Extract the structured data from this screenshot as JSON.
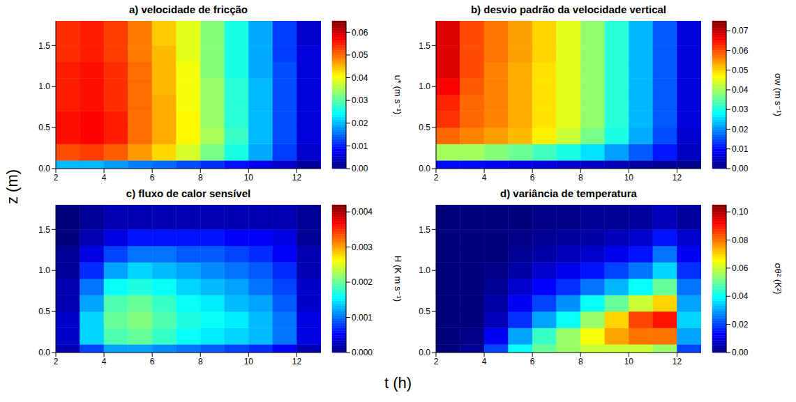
{
  "x_label": "t (h)",
  "y_label": "z (m)",
  "chart_data": [
    {
      "type": "heatmap",
      "title": "a) velocidade de fricção",
      "xlim": [
        2,
        13
      ],
      "xticks": [
        2,
        4,
        6,
        8,
        10,
        12
      ],
      "ylim": [
        0,
        1.8
      ],
      "yticks": [
        {
          "value": 0,
          "label": "0.0"
        },
        {
          "value": 0.5,
          "label": "0.5"
        },
        {
          "value": 1,
          "label": "1.0"
        },
        {
          "value": 1.5,
          "label": "1.5"
        }
      ],
      "x_edges": [
        2,
        3,
        4,
        5,
        6,
        7,
        8,
        9,
        10,
        11,
        12,
        13
      ],
      "y_edges": [
        0,
        0.1,
        0.3,
        0.5,
        0.7,
        0.9,
        1.1,
        1.3,
        1.5,
        1.8
      ],
      "cells": [
        [
          0.02,
          0.02,
          0.018,
          0.016,
          0.015,
          0.013,
          0.011,
          0.009,
          0.007,
          0.005,
          0.002
        ],
        [
          0.052,
          0.053,
          0.051,
          0.047,
          0.043,
          0.038,
          0.032,
          0.026,
          0.019,
          0.012,
          0.005
        ],
        [
          0.056,
          0.057,
          0.055,
          0.05,
          0.046,
          0.041,
          0.035,
          0.028,
          0.02,
          0.013,
          0.006
        ],
        [
          0.056,
          0.057,
          0.055,
          0.05,
          0.046,
          0.041,
          0.034,
          0.027,
          0.02,
          0.013,
          0.006
        ],
        [
          0.055,
          0.056,
          0.054,
          0.05,
          0.046,
          0.04,
          0.034,
          0.027,
          0.02,
          0.013,
          0.006
        ],
        [
          0.055,
          0.056,
          0.054,
          0.05,
          0.045,
          0.04,
          0.034,
          0.027,
          0.02,
          0.013,
          0.006
        ],
        [
          0.055,
          0.056,
          0.054,
          0.05,
          0.045,
          0.04,
          0.033,
          0.026,
          0.019,
          0.013,
          0.006
        ],
        [
          0.054,
          0.055,
          0.053,
          0.049,
          0.045,
          0.039,
          0.033,
          0.026,
          0.019,
          0.012,
          0.006
        ],
        [
          0.054,
          0.055,
          0.053,
          0.049,
          0.044,
          0.039,
          0.033,
          0.026,
          0.019,
          0.012,
          0.005
        ]
      ],
      "colorbar": {
        "label": "u* (m s⁻¹)",
        "range": [
          0,
          0.065
        ],
        "ticks": [
          {
            "value": 0,
            "label": "0.00"
          },
          {
            "value": 0.01,
            "label": "0.01"
          },
          {
            "value": 0.02,
            "label": "0.02"
          },
          {
            "value": 0.03,
            "label": "0.03"
          },
          {
            "value": 0.04,
            "label": "0.04"
          },
          {
            "value": 0.05,
            "label": "0.05"
          },
          {
            "value": 0.06,
            "label": "0.06"
          }
        ]
      }
    },
    {
      "type": "heatmap",
      "title": "b) desvio padrão da velocidade vertical",
      "xlim": [
        2,
        13
      ],
      "xticks": [
        2,
        4,
        6,
        8,
        10,
        12
      ],
      "ylim": [
        0,
        1.8
      ],
      "yticks": [
        {
          "value": 0,
          "label": "0.0"
        },
        {
          "value": 0.5,
          "label": "0.5"
        },
        {
          "value": 1,
          "label": "1.0"
        },
        {
          "value": 1.5,
          "label": "1.5"
        }
      ],
      "x_edges": [
        2,
        3,
        4,
        5,
        6,
        7,
        8,
        9,
        10,
        11,
        12,
        13
      ],
      "y_edges": [
        0,
        0.1,
        0.3,
        0.5,
        0.7,
        0.9,
        1.1,
        1.3,
        1.5,
        1.8
      ],
      "cells": [
        [
          0.01,
          0.01,
          0.009,
          0.008,
          0.007,
          0.006,
          0.005,
          0.004,
          0.003,
          0.002,
          0.001
        ],
        [
          0.04,
          0.04,
          0.038,
          0.036,
          0.033,
          0.03,
          0.026,
          0.021,
          0.016,
          0.011,
          0.005
        ],
        [
          0.058,
          0.056,
          0.054,
          0.052,
          0.048,
          0.043,
          0.037,
          0.03,
          0.022,
          0.015,
          0.006
        ],
        [
          0.062,
          0.058,
          0.056,
          0.053,
          0.049,
          0.045,
          0.039,
          0.031,
          0.023,
          0.016,
          0.007
        ],
        [
          0.063,
          0.058,
          0.056,
          0.053,
          0.049,
          0.045,
          0.039,
          0.031,
          0.023,
          0.016,
          0.007
        ],
        [
          0.066,
          0.059,
          0.056,
          0.053,
          0.049,
          0.045,
          0.039,
          0.031,
          0.023,
          0.016,
          0.007
        ],
        [
          0.068,
          0.06,
          0.056,
          0.053,
          0.049,
          0.045,
          0.039,
          0.031,
          0.023,
          0.016,
          0.007
        ],
        [
          0.068,
          0.06,
          0.057,
          0.054,
          0.05,
          0.045,
          0.039,
          0.031,
          0.023,
          0.016,
          0.007
        ],
        [
          0.068,
          0.06,
          0.057,
          0.054,
          0.05,
          0.045,
          0.039,
          0.031,
          0.023,
          0.016,
          0.007
        ]
      ],
      "colorbar": {
        "label": "σw (m s⁻¹)",
        "range": [
          0,
          0.075
        ],
        "ticks": [
          {
            "value": 0,
            "label": "0.00"
          },
          {
            "value": 0.01,
            "label": "0.01"
          },
          {
            "value": 0.02,
            "label": "0.02"
          },
          {
            "value": 0.03,
            "label": "0.03"
          },
          {
            "value": 0.04,
            "label": "0.04"
          },
          {
            "value": 0.05,
            "label": "0.05"
          },
          {
            "value": 0.06,
            "label": "0.06"
          },
          {
            "value": 0.07,
            "label": "0.07"
          }
        ]
      }
    },
    {
      "type": "heatmap",
      "title": "c) fluxo de calor sensível",
      "xlim": [
        2,
        13
      ],
      "xticks": [
        2,
        4,
        6,
        8,
        10,
        12
      ],
      "ylim": [
        0,
        1.8
      ],
      "yticks": [
        {
          "value": 0,
          "label": "0.0"
        },
        {
          "value": 0.5,
          "label": "0.5"
        },
        {
          "value": 1,
          "label": "1.0"
        },
        {
          "value": 1.5,
          "label": "1.5"
        }
      ],
      "x_edges": [
        2,
        3,
        4,
        5,
        6,
        7,
        8,
        9,
        10,
        11,
        12,
        13
      ],
      "y_edges": [
        0,
        0.1,
        0.3,
        0.5,
        0.7,
        0.9,
        1.1,
        1.3,
        1.5,
        1.8
      ],
      "cells": [
        [
          0.0002,
          0.0008,
          0.0012,
          0.0012,
          0.0011,
          0.001,
          0.0009,
          0.0008,
          0.0007,
          0.0005,
          0.0002
        ],
        [
          0.0003,
          0.0014,
          0.0019,
          0.002,
          0.0018,
          0.0016,
          0.0015,
          0.0014,
          0.0013,
          0.001,
          0.0004
        ],
        [
          0.0003,
          0.0014,
          0.002,
          0.0021,
          0.0019,
          0.0017,
          0.0016,
          0.0015,
          0.0013,
          0.001,
          0.0004
        ],
        [
          0.0002,
          0.0012,
          0.0019,
          0.002,
          0.0018,
          0.0016,
          0.0015,
          0.0013,
          0.0012,
          0.0009,
          0.0003
        ],
        [
          0.0002,
          0.001,
          0.0016,
          0.0017,
          0.0016,
          0.0014,
          0.0013,
          0.0012,
          0.001,
          0.0008,
          0.0003
        ],
        [
          0.0001,
          0.0007,
          0.0012,
          0.0014,
          0.0013,
          0.0012,
          0.0011,
          0.001,
          0.0009,
          0.0007,
          0.0002
        ],
        [
          0.0001,
          0.0004,
          0.0008,
          0.001,
          0.001,
          0.0009,
          0.0009,
          0.0008,
          0.0007,
          0.0005,
          0.0002
        ],
        [
          0,
          0.0002,
          0.0004,
          0.0006,
          0.0006,
          0.0006,
          0.0006,
          0.0005,
          0.0005,
          0.0004,
          0.0001
        ],
        [
          0,
          0.0001,
          0.0002,
          0.0002,
          0.0002,
          0.0002,
          0.0002,
          0.0002,
          0.0002,
          0.0002,
          0.0001
        ]
      ],
      "colorbar": {
        "label": "H (K m s⁻¹)",
        "range": [
          0,
          0.0042
        ],
        "ticks": [
          {
            "value": 0,
            "label": "0.000"
          },
          {
            "value": 0.001,
            "label": "0.001"
          },
          {
            "value": 0.002,
            "label": "0.002"
          },
          {
            "value": 0.003,
            "label": "0.003"
          },
          {
            "value": 0.004,
            "label": "0.004"
          }
        ]
      }
    },
    {
      "type": "heatmap",
      "title": "d) variância de temperatura",
      "xlim": [
        2,
        13
      ],
      "xticks": [
        2,
        4,
        6,
        8,
        10,
        12
      ],
      "ylim": [
        0,
        1.8
      ],
      "yticks": [
        {
          "value": 0,
          "label": "0.0"
        },
        {
          "value": 0.5,
          "label": "0.5"
        },
        {
          "value": 1,
          "label": "1.0"
        },
        {
          "value": 1.5,
          "label": "1.5"
        }
      ],
      "x_edges": [
        2,
        3,
        4,
        5,
        6,
        7,
        8,
        9,
        10,
        11,
        12,
        13
      ],
      "y_edges": [
        0,
        0.1,
        0.3,
        0.5,
        0.7,
        0.9,
        1.1,
        1.3,
        1.5,
        1.8
      ],
      "cells": [
        [
          0,
          0.002,
          0.02,
          0.04,
          0.05,
          0.055,
          0.06,
          0.06,
          0.06,
          0.055,
          0.02
        ],
        [
          0,
          0.001,
          0.012,
          0.03,
          0.045,
          0.055,
          0.065,
          0.075,
          0.08,
          0.08,
          0.03
        ],
        [
          0,
          0,
          0.006,
          0.018,
          0.03,
          0.04,
          0.055,
          0.07,
          0.085,
          0.09,
          0.035
        ],
        [
          0,
          0,
          0.004,
          0.012,
          0.02,
          0.028,
          0.04,
          0.05,
          0.06,
          0.07,
          0.03
        ],
        [
          0,
          0,
          0.002,
          0.008,
          0.013,
          0.018,
          0.025,
          0.032,
          0.04,
          0.05,
          0.025
        ],
        [
          0,
          0,
          0.001,
          0.004,
          0.008,
          0.011,
          0.015,
          0.02,
          0.025,
          0.035,
          0.018
        ],
        [
          0,
          0,
          0,
          0.002,
          0.004,
          0.006,
          0.008,
          0.011,
          0.015,
          0.025,
          0.012
        ],
        [
          0,
          0,
          0,
          0.001,
          0.002,
          0.003,
          0.004,
          0.006,
          0.008,
          0.015,
          0.008
        ],
        [
          0,
          0,
          0,
          0,
          0.001,
          0.001,
          0.002,
          0.002,
          0.003,
          0.006,
          0.003
        ]
      ],
      "colorbar": {
        "label": "σθ² (K²)",
        "range": [
          0,
          0.105
        ],
        "ticks": [
          {
            "value": 0,
            "label": "0.00"
          },
          {
            "value": 0.02,
            "label": "0.02"
          },
          {
            "value": 0.04,
            "label": "0.04"
          },
          {
            "value": 0.06,
            "label": "0.06"
          },
          {
            "value": 0.08,
            "label": "0.08"
          },
          {
            "value": 0.1,
            "label": "0.10"
          }
        ]
      }
    }
  ]
}
